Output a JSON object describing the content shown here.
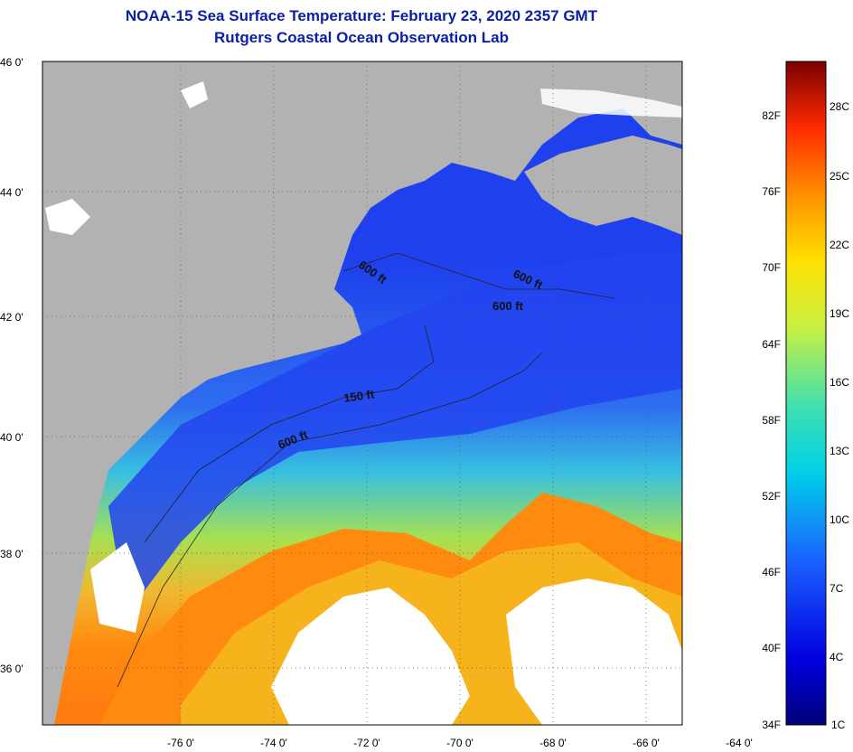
{
  "title": "NOAA-15 Sea Surface Temperature:  February 23, 2020 2357 GMT",
  "subtitle": "Rutgers Coastal Ocean Observation Lab",
  "colors": {
    "land": "#b2b2b2",
    "cloud": "#ffffff",
    "title": "#0a1ea8"
  },
  "latitude_labels": [
    "46 0'",
    "44 0'",
    "42 0'",
    "40 0'",
    "38 0'",
    "36 0'"
  ],
  "longitude_labels": [
    "-76 0'",
    "-74 0'",
    "-72 0'",
    "-70 0'",
    "-68 0'",
    "-66 0'",
    "-64 0'"
  ],
  "contour_labels": [
    "600 ft",
    "600 ft",
    "600 ft",
    "150 ft",
    "600 ft"
  ],
  "colorbar": {
    "fahrenheit": [
      "82F",
      "76F",
      "70F",
      "64F",
      "58F",
      "52F",
      "46F",
      "40F",
      "34F"
    ],
    "celsius": [
      "28C",
      "25C",
      "22C",
      "19C",
      "16C",
      "13C",
      "10C",
      "7C",
      "4C",
      "1C"
    ]
  }
}
